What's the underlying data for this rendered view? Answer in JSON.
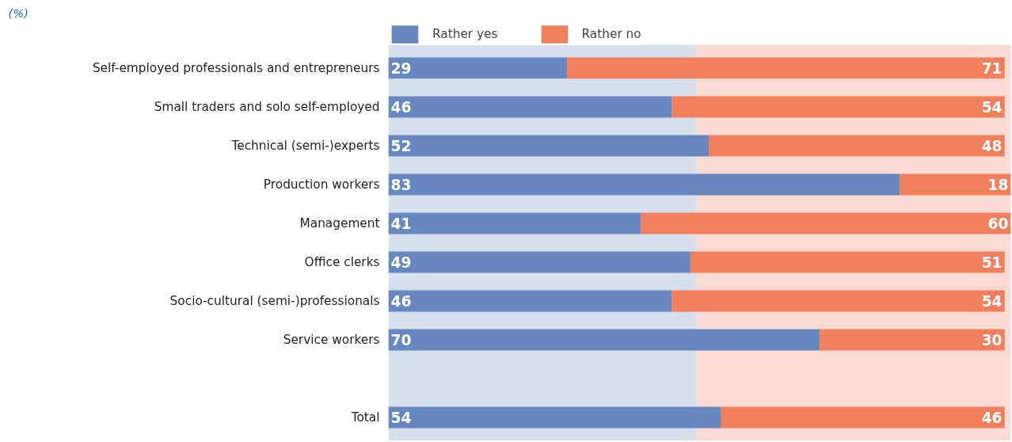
{
  "chart_data": {
    "type": "bar",
    "orientation": "horizontal",
    "stacked": true,
    "data_labels": true,
    "grid": false,
    "legend": "top",
    "tick_labels": "y",
    "annotations": [
      "(%)"
    ],
    "categories": [
      "Self-employed professionals and entrepreneurs",
      "Small traders and solo self-employed",
      "Technical (semi-)experts",
      "Production workers",
      "Management",
      "Office clerks",
      "Socio-cultural (semi-)professionals",
      "Service workers",
      null,
      "Total"
    ],
    "xlim": [
      0,
      101
    ],
    "series": [
      {
        "name": "Rather yes",
        "color": "#6688bf",
        "values": [
          29,
          46,
          52,
          83,
          41,
          49,
          46,
          70,
          null,
          54
        ]
      },
      {
        "name": "Rather no",
        "color": "#f07f5e",
        "values": [
          71,
          54,
          48,
          18,
          60,
          51,
          54,
          30,
          null,
          46
        ]
      }
    ],
    "bands": [
      {
        "axis": "x",
        "from": 0,
        "to": 50,
        "label": null,
        "color": "#d6e0ec"
      },
      {
        "axis": "x",
        "from": 50,
        "to": 101,
        "label": null,
        "color": "#fadbd3"
      }
    ]
  }
}
